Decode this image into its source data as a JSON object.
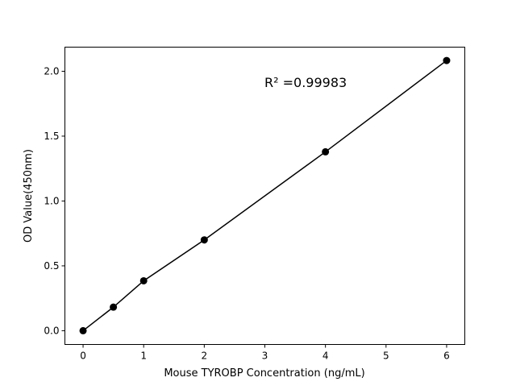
{
  "chart_data": {
    "type": "scatter",
    "title": "",
    "xlabel": "Mouse TYROBP Concentration (ng/mL)",
    "ylabel": "OD Value(450nm)",
    "xlim": [
      -0.3,
      6.3
    ],
    "ylim": [
      -0.106,
      2.186
    ],
    "xticks": [
      "0",
      "1",
      "2",
      "3",
      "4",
      "5",
      "6"
    ],
    "yticks": [
      "0.0",
      "0.5",
      "1.0",
      "1.5",
      "2.0"
    ],
    "grid": false,
    "annotation": "R² =0.99983",
    "series": [
      {
        "x": [
          0,
          0.5,
          1,
          2,
          4,
          6
        ],
        "y": [
          0.0,
          0.182,
          0.385,
          0.7,
          1.379,
          2.083
        ],
        "color": "#000000",
        "marker": "circle",
        "line": true
      }
    ]
  }
}
